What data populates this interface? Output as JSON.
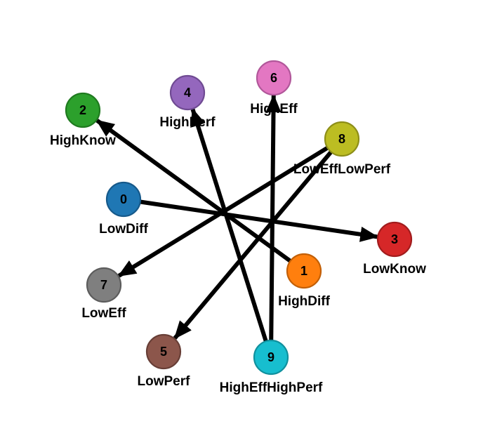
{
  "nodes": [
    {
      "id": "0",
      "label": "LowDiff",
      "color": "#1f77b4",
      "stroke": "#16598a"
    },
    {
      "id": "1",
      "label": "HighDiff",
      "color": "#ff7f0e",
      "stroke": "#c25f06"
    },
    {
      "id": "2",
      "label": "HighKnow",
      "color": "#2ca02c",
      "stroke": "#1f7a1f"
    },
    {
      "id": "3",
      "label": "LowKnow",
      "color": "#d62728",
      "stroke": "#a11c1d"
    },
    {
      "id": "4",
      "label": "HighPerf",
      "color": "#9467bd",
      "stroke": "#6f4a92"
    },
    {
      "id": "5",
      "label": "LowPerf",
      "color": "#8c564b",
      "stroke": "#673e36"
    },
    {
      "id": "6",
      "label": "HighEff",
      "color": "#e377c2",
      "stroke": "#b1579a"
    },
    {
      "id": "7",
      "label": "LowEff",
      "color": "#7f7f7f",
      "stroke": "#5c5c5c"
    },
    {
      "id": "8",
      "label": "LowEffLowPerf",
      "color": "#bcbd22",
      "stroke": "#8d8e18"
    },
    {
      "id": "9",
      "label": "HighEffHighPerf",
      "color": "#17becf",
      "stroke": "#10909d"
    }
  ],
  "edges": [
    {
      "from": "0",
      "to": "3"
    },
    {
      "from": "1",
      "to": "2"
    },
    {
      "from": "8",
      "to": "7"
    },
    {
      "from": "8",
      "to": "5"
    },
    {
      "from": "9",
      "to": "4"
    },
    {
      "from": "9",
      "to": "6"
    }
  ]
}
